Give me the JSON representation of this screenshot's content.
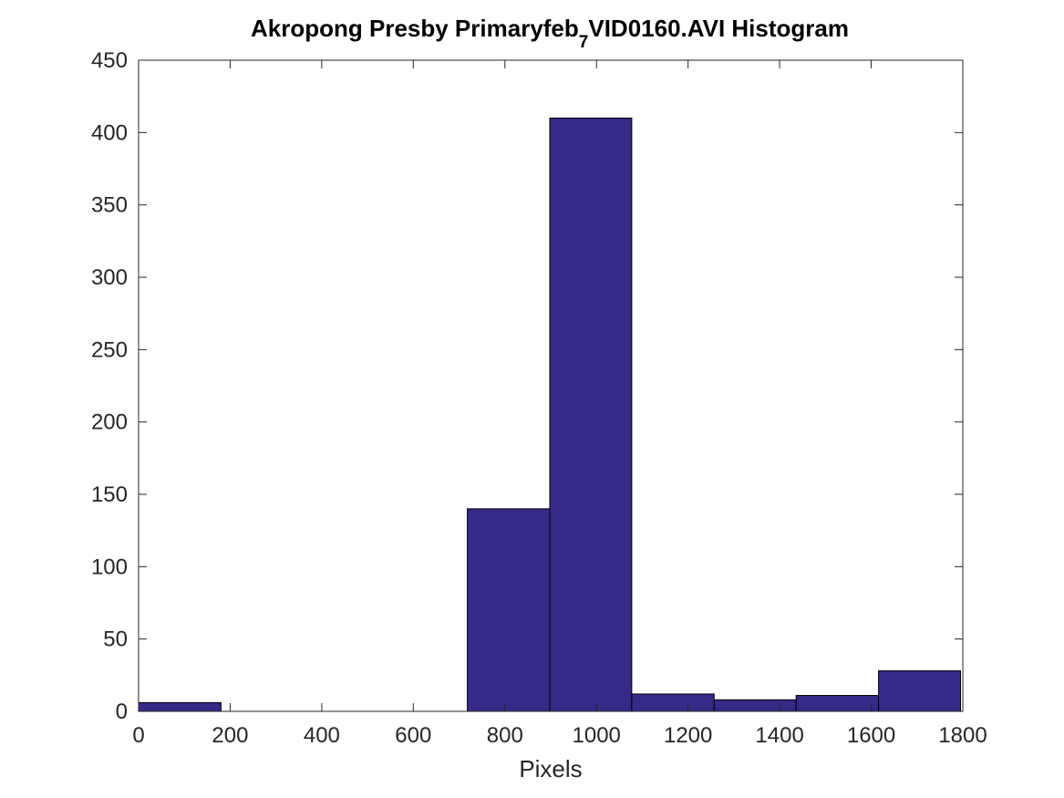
{
  "chart_data": {
    "type": "bar",
    "title": {
      "main": "Akropong Presby Primaryfeb",
      "subscript": "7",
      "rest": "VID0160.AVI Histogram"
    },
    "xlabel": "Pixels",
    "ylabel": "",
    "xlim": [
      0,
      1800
    ],
    "ylim": [
      0,
      450
    ],
    "xticks": [
      0,
      200,
      400,
      600,
      800,
      1000,
      1200,
      1400,
      1600,
      1800
    ],
    "yticks": [
      0,
      50,
      100,
      150,
      200,
      250,
      300,
      350,
      400,
      450
    ],
    "grid": false,
    "bar_color": "#352a87",
    "bar_edge_color": "#000000",
    "bins": [
      {
        "start": 0,
        "end": 180,
        "count": 6
      },
      {
        "start": 180,
        "end": 359,
        "count": 0
      },
      {
        "start": 359,
        "end": 539,
        "count": 0
      },
      {
        "start": 539,
        "end": 718,
        "count": 0
      },
      {
        "start": 718,
        "end": 898,
        "count": 140
      },
      {
        "start": 898,
        "end": 1077,
        "count": 410
      },
      {
        "start": 1077,
        "end": 1257,
        "count": 12
      },
      {
        "start": 1257,
        "end": 1436,
        "count": 8
      },
      {
        "start": 1436,
        "end": 1616,
        "count": 11
      },
      {
        "start": 1616,
        "end": 1795,
        "count": 28
      }
    ]
  }
}
